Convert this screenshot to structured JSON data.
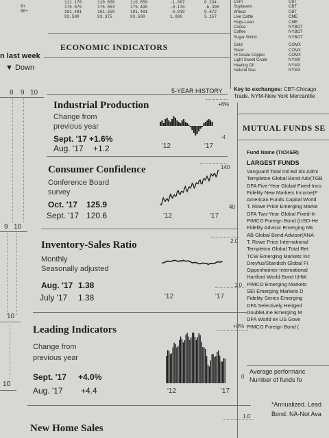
{
  "top_numbers": {
    "labels": [
      "8+",
      "88+"
    ],
    "col1": [
      "111.176",
      "175.875",
      "101.481",
      "93.500"
    ],
    "col2": [
      "110.650",
      "175.053",
      "101.250",
      "93.375"
    ],
    "col3": [
      "110.650",
      "175.490",
      "101.481",
      "93.500"
    ],
    "col4": [
      "-1.097",
      "-0.170",
      "-0.019",
      "1.000"
    ],
    "col5": [
      "0.234",
      "-6.398",
      "0.672",
      "5.157"
    ]
  },
  "commodities": [
    {
      "name": "Corn",
      "ex": "CBT"
    },
    {
      "name": "Soybeans",
      "ex": "CBT"
    },
    {
      "name": "Wheat",
      "ex": "CBT"
    },
    {
      "name": "Live Cattle",
      "ex": "CME"
    },
    {
      "name": "Hogs-Lean",
      "ex": "CME"
    },
    {
      "name": "Cocoa",
      "ex": "NYBOT"
    },
    {
      "name": "Coffee",
      "ex": "NYBOT"
    },
    {
      "name": "Sugar-World",
      "ex": "NYBOT"
    },
    {
      "name": "Gold",
      "ex": "COMX"
    },
    {
      "name": "Silver",
      "ex": "COMX"
    },
    {
      "name": "Hi Grade Copper",
      "ex": "COMX"
    },
    {
      "name": "Light Sweet Crude",
      "ex": "NYMX"
    },
    {
      "name": "Heating Oil",
      "ex": "NYMX"
    },
    {
      "name": "Natural Gas",
      "ex": "NYMX"
    }
  ],
  "key_text": {
    "line1_bold": "Key to exchanges:",
    "line1": " CBT-Chicago",
    "line2": "Trade. NYM-New York Mercantile"
  },
  "left_strip": {
    "last_week": "n last week",
    "down": "▼ Down",
    "ticks_row1": [
      "8",
      "9",
      "10"
    ],
    "ticks_row2": [
      "9",
      "10"
    ],
    "tick3": "10",
    "tick4": "10"
  },
  "economic": {
    "title": "ECONOMIC INDICATORS",
    "history_label": "5-YEAR HISTORY",
    "indicators": [
      {
        "title": "Industrial Production",
        "sub1": "Change from",
        "sub2": "previous year",
        "cur_label": "Sept. '17",
        "cur_value": "+1.6%",
        "prev_label": "Aug. '17",
        "prev_value": "+1.2",
        "scale_top": "+6%",
        "scale_bottom": "-4",
        "axis_start": "'12",
        "axis_end": "'17"
      },
      {
        "title": "Consumer Confidence",
        "sub1": "Conference Board",
        "sub2": "survey",
        "cur_label": "Oct. '17",
        "cur_value": "125.9",
        "prev_label": "Sept. '17",
        "prev_value": "120.6",
        "scale_top": "140",
        "scale_bottom": "40",
        "axis_start": "'12",
        "axis_end": "'17"
      },
      {
        "title": "Inventory-Sales Ratio",
        "sub1": "Monthly",
        "sub2": "Seasonally adjusted",
        "cur_label": "Aug. '17",
        "cur_value": "1.38",
        "prev_label": "July '17",
        "prev_value": "1.38",
        "scale_top": "2.0",
        "scale_bottom": "1.0",
        "axis_start": "'12",
        "axis_end": "'17"
      },
      {
        "title": "Leading Indicators",
        "sub1": "Change from",
        "sub2": "previous year",
        "cur_label": "Sept. '17",
        "cur_value": "+4.0%",
        "prev_label": "Aug. '17",
        "prev_value": "+4.4",
        "scale_top": "+8%",
        "scale_bottom": "0",
        "axis_start": "'12",
        "axis_end": "'17"
      }
    ],
    "next_title": "New Home Sales",
    "next_scale": "1.0"
  },
  "mutual_funds": {
    "title": "MUTUAL FUNDS SE",
    "fund_name_header": "Fund Name (TICKER)",
    "largest_header": "LARGEST FUNDS",
    "funds": [
      "Vanguard Total Intl Bd Idx Admi",
      "Templeton Global Bond Adv(TGB",
      "DFA Five-Year Global Fixed-Inco",
      "Fidelity New Markets Income(F",
      "American Funds Capital World",
      "T. Rowe Price Emerging Marke",
      "DFA Two-Year Global Fixed-In",
      "PIMCO Foreign Bond (USD-He",
      "Fidelity Advisor Emerging Mk",
      "AB Global Bond Advisor(ANA",
      "T. Rowe Price International",
      "Templeton Global Total Ret",
      "TCW Emerging Markets Inc",
      "Dreyfus/Standish Global Fi",
      "Oppenheimer International",
      "Hartford World Bond I(HW",
      "PIMCO Emerging Markets",
      "SEI Emerging Markets D",
      "Fidelity Series Emerging",
      "DFA Selectively Hedged",
      "DoubleLine Emerging M",
      "DFA World ex US Gove",
      "PIMCO Foreign Bond ("
    ],
    "avg1": "Average performanc",
    "avg2": "Number of funds fo",
    "note1": "*Annualized. Lead",
    "note2": "Bond. NA-Not Ava"
  }
}
